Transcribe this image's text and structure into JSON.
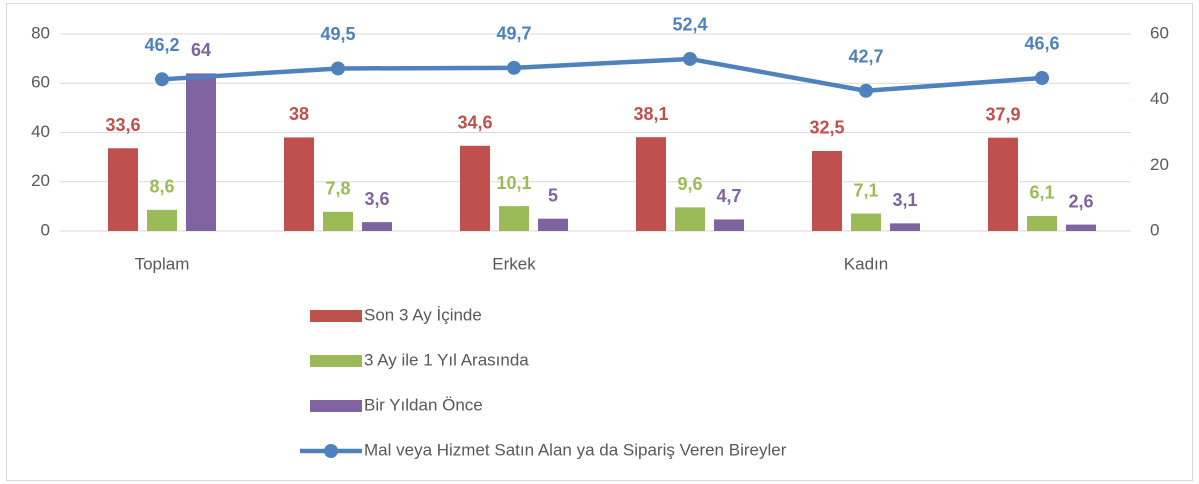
{
  "chart_data": {
    "type": "bar",
    "categories": [
      "Toplam",
      null,
      "Erkek",
      null,
      "Kadın",
      null
    ],
    "series": [
      {
        "name": "Son 3 Ay İçinde",
        "color": "#c0504d",
        "values": [
          33.6,
          38,
          34.6,
          38.1,
          32.5,
          37.9
        ],
        "value_labels": [
          "33,6",
          "38",
          "34,6",
          "38,1",
          "32,5",
          "37,9"
        ]
      },
      {
        "name": "3 Ay ile 1 Yıl Arasında",
        "color": "#9bbb59",
        "values": [
          8.6,
          7.8,
          10.1,
          9.6,
          7.1,
          6.1
        ],
        "value_labels": [
          "8,6",
          "7,8",
          "10,1",
          "9,6",
          "7,1",
          "6,1"
        ]
      },
      {
        "name": "Bir Yıldan Önce",
        "color": "#8064a2",
        "values": [
          64,
          3.6,
          5,
          4.7,
          3.1,
          2.6
        ],
        "value_labels": [
          "64",
          "3,6",
          "5",
          "4,7",
          "3,1",
          "2,6"
        ]
      },
      {
        "name": "Mal veya Hizmet Satın Alan ya da Sipariş Veren Bireyler",
        "color": "#4f81bd",
        "type": "line",
        "axis": "y2",
        "values": [
          46.2,
          49.5,
          49.7,
          52.4,
          42.7,
          46.6
        ],
        "value_labels": [
          "46,2",
          "49,5",
          "49,7",
          "52,4",
          "42,7",
          "46,6"
        ]
      }
    ],
    "ylim": [
      0,
      80
    ],
    "yticks": [
      0,
      20,
      40,
      60,
      80
    ],
    "y2lim": [
      0,
      60
    ],
    "y2ticks": [
      0,
      20,
      40,
      60
    ],
    "grid": true,
    "legend": "bottom"
  }
}
